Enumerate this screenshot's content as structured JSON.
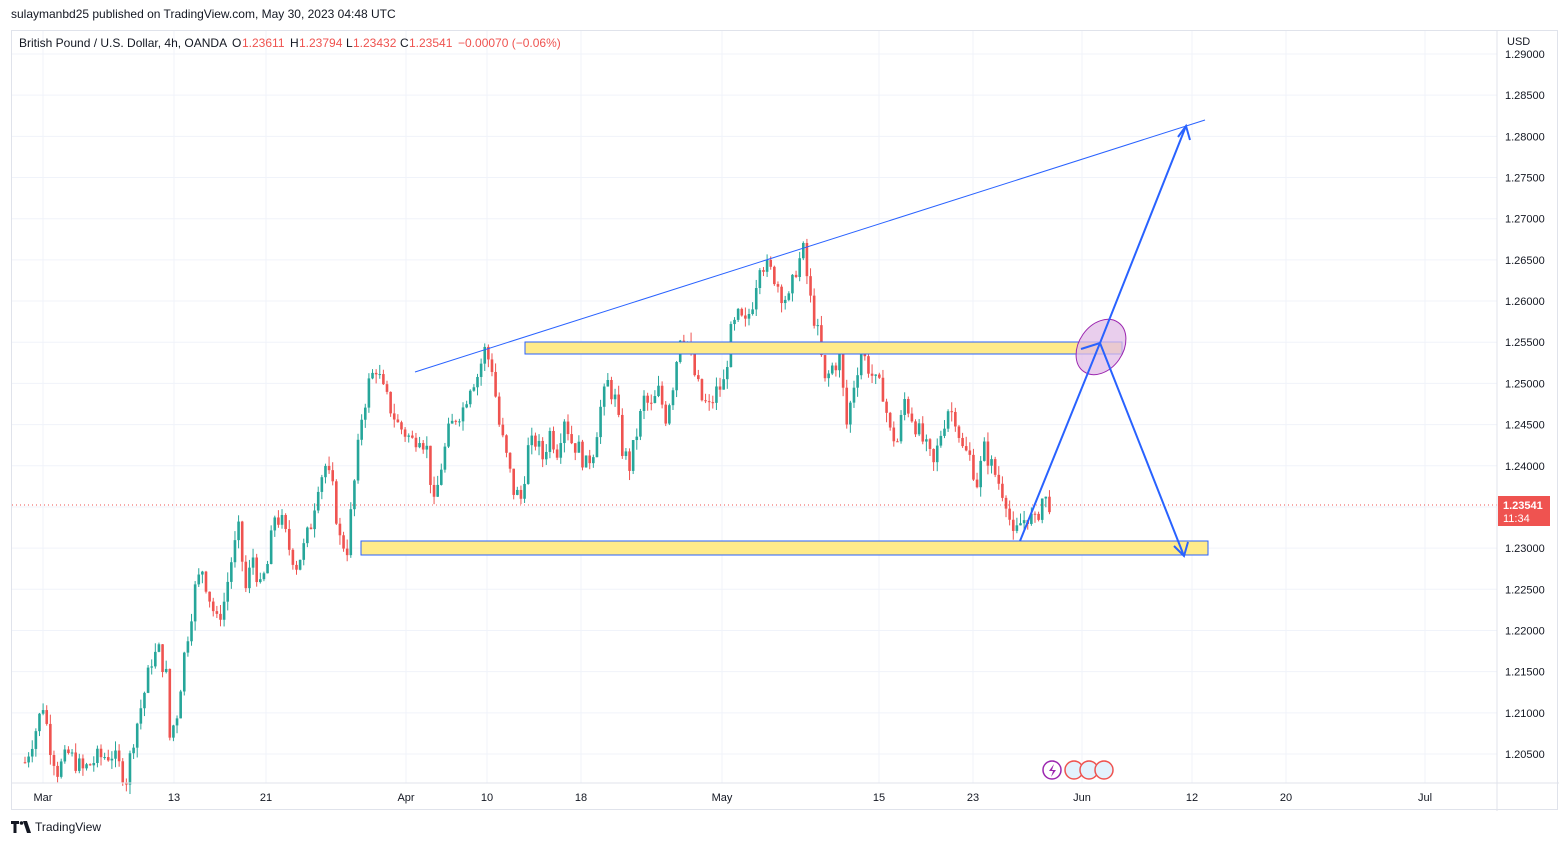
{
  "header": {
    "published": "sulaymanbd25 published on TradingView.com, May 30, 2023 04:48 UTC"
  },
  "legend": {
    "symbol": "British Pound / U.S. Dollar, 4h, OANDA",
    "o_label": "O",
    "o_value": "1.23611",
    "h_label": "H",
    "h_value": "1.23794",
    "l_label": "L",
    "l_value": "1.23432",
    "c_label": "C",
    "c_value": "1.23541",
    "change": "−0.00070 (−0.06%)"
  },
  "price_axis": {
    "currency": "USD",
    "last_price": "1.23541",
    "countdown": "11:34"
  },
  "footer": {
    "brand": "TradingView"
  },
  "colors": {
    "up": "#26a69a",
    "down": "#ef5350",
    "zone_fill": "#ffeb8a",
    "zone_border": "#2962ff",
    "trendline": "#2962ff",
    "highlight": "#e1bee7",
    "grid": "#f0f3fa"
  },
  "chart_data": {
    "type": "candlestick",
    "instrument": "GBPUSD",
    "timeframe": "4h",
    "y_ticks": [
      "1.29000",
      "1.28500",
      "1.28000",
      "1.27500",
      "1.27000",
      "1.26500",
      "1.26000",
      "1.25500",
      "1.25000",
      "1.24500",
      "1.24000",
      "1.23500",
      "1.23000",
      "1.22500",
      "1.22000",
      "1.21500",
      "1.21000",
      "1.20500"
    ],
    "x_ticks": [
      "Mar",
      "13",
      "21",
      "Apr",
      "10",
      "18",
      "May",
      "15",
      "23",
      "Jun",
      "12",
      "20",
      "Jul"
    ],
    "ylim": [
      1.2015,
      1.2915
    ],
    "close_path": [
      [
        0,
        1.204
      ],
      [
        3,
        1.208
      ],
      [
        5,
        1.211
      ],
      [
        7,
        1.206
      ],
      [
        9,
        1.203
      ],
      [
        12,
        1.205
      ],
      [
        14,
        1.204
      ],
      [
        16,
        1.203
      ],
      [
        20,
        1.2045
      ],
      [
        24,
        1.205
      ],
      [
        28,
        1.202
      ],
      [
        30,
        1.207
      ],
      [
        33,
        1.2125
      ],
      [
        35,
        1.2165
      ],
      [
        37,
        1.2175
      ],
      [
        39,
        1.2145
      ],
      [
        40,
        1.207
      ],
      [
        42,
        1.21
      ],
      [
        44,
        1.217
      ],
      [
        47,
        1.225
      ],
      [
        49,
        1.2275
      ],
      [
        51,
        1.224
      ],
      [
        53,
        1.221
      ],
      [
        55,
        1.2235
      ],
      [
        57,
        1.2285
      ],
      [
        59,
        1.232
      ],
      [
        61,
        1.225
      ],
      [
        63,
        1.229
      ],
      [
        65,
        1.225
      ],
      [
        67,
        1.228
      ],
      [
        69,
        1.234
      ],
      [
        71,
        1.233
      ],
      [
        73,
        1.23
      ],
      [
        75,
        1.228
      ],
      [
        77,
        1.23
      ],
      [
        79,
        1.233
      ],
      [
        81,
        1.238
      ],
      [
        83,
        1.24
      ],
      [
        85,
        1.237
      ],
      [
        87,
        1.231
      ],
      [
        89,
        1.23
      ],
      [
        91,
        1.238
      ],
      [
        93,
        1.246
      ],
      [
        95,
        1.25
      ],
      [
        97,
        1.252
      ],
      [
        99,
        1.249
      ],
      [
        101,
        1.247
      ],
      [
        103,
        1.245
      ],
      [
        105,
        1.244
      ],
      [
        107,
        1.243
      ],
      [
        109,
        1.244
      ],
      [
        111,
        1.242
      ],
      [
        113,
        1.235
      ],
      [
        115,
        1.24
      ],
      [
        117,
        1.244
      ],
      [
        119,
        1.246
      ],
      [
        121,
        1.247
      ],
      [
        123,
        1.25
      ],
      [
        125,
        1.251
      ],
      [
        127,
        1.254
      ],
      [
        129,
        1.252
      ],
      [
        131,
        1.245
      ],
      [
        133,
        1.241
      ],
      [
        135,
        1.237
      ],
      [
        137,
        1.236
      ],
      [
        139,
        1.242
      ],
      [
        141,
        1.243
      ],
      [
        143,
        1.241
      ],
      [
        145,
        1.244
      ],
      [
        147,
        1.242
      ],
      [
        149,
        1.246
      ],
      [
        151,
        1.243
      ],
      [
        153,
        1.242
      ],
      [
        155,
        1.24
      ],
      [
        157,
        1.242
      ],
      [
        159,
        1.247
      ],
      [
        161,
        1.25
      ],
      [
        163,
        1.248
      ],
      [
        165,
        1.242
      ],
      [
        167,
        1.24
      ],
      [
        169,
        1.244
      ],
      [
        171,
        1.248
      ],
      [
        173,
        1.247
      ],
      [
        175,
        1.249
      ],
      [
        177,
        1.246
      ],
      [
        179,
        1.25
      ],
      [
        181,
        1.256
      ],
      [
        183,
        1.255
      ],
      [
        185,
        1.251
      ],
      [
        187,
        1.248
      ],
      [
        189,
        1.247
      ],
      [
        191,
        1.249
      ],
      [
        193,
        1.25
      ],
      [
        195,
        1.256
      ],
      [
        197,
        1.258
      ],
      [
        199,
        1.257
      ],
      [
        201,
        1.26
      ],
      [
        203,
        1.265
      ],
      [
        205,
        1.264
      ],
      [
        207,
        1.263
      ],
      [
        209,
        1.261
      ],
      [
        211,
        1.26
      ],
      [
        213,
        1.264
      ],
      [
        215,
        1.266
      ],
      [
        217,
        1.26
      ],
      [
        219,
        1.256
      ],
      [
        221,
        1.25
      ],
      [
        223,
        1.252
      ],
      [
        225,
        1.253
      ],
      [
        227,
        1.245
      ],
      [
        229,
        1.25
      ],
      [
        231,
        1.254
      ],
      [
        233,
        1.252
      ],
      [
        235,
        1.25
      ],
      [
        237,
        1.249
      ],
      [
        239,
        1.244
      ],
      [
        241,
        1.243
      ],
      [
        243,
        1.248
      ],
      [
        245,
        1.246
      ],
      [
        247,
        1.244
      ],
      [
        249,
        1.242
      ],
      [
        251,
        1.24
      ],
      [
        253,
        1.244
      ],
      [
        255,
        1.247
      ],
      [
        257,
        1.246
      ],
      [
        259,
        1.242
      ],
      [
        261,
        1.241
      ],
      [
        263,
        1.238
      ],
      [
        265,
        1.242
      ],
      [
        267,
        1.24
      ],
      [
        269,
        1.238
      ],
      [
        271,
        1.236
      ],
      [
        273,
        1.231
      ],
      [
        275,
        1.233
      ],
      [
        277,
        1.234
      ],
      [
        279,
        1.233
      ],
      [
        281,
        1.236
      ],
      [
        283,
        1.2355
      ]
    ],
    "resistance_zone": [
      1.2535,
      1.255
    ],
    "support_zone": [
      1.2294,
      1.231
    ],
    "trendline": [
      [
        1.2518
      ],
      [
        1.282
      ]
    ],
    "last_price": 1.23541
  }
}
